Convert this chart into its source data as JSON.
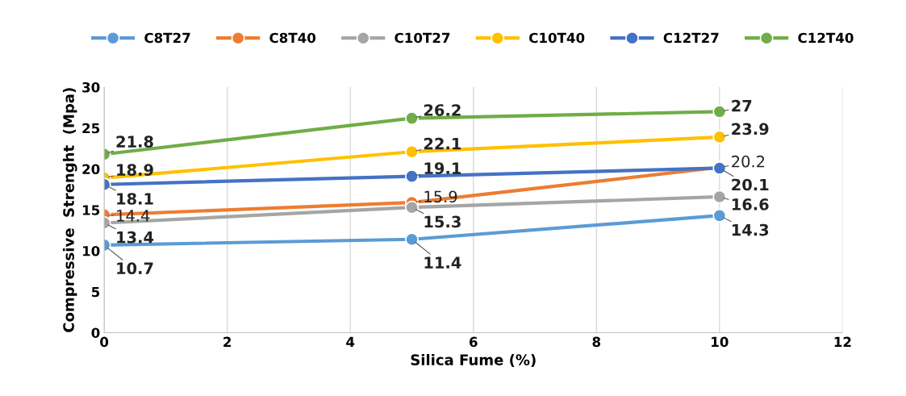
{
  "chart_data": {
    "type": "line",
    "xlabel": "Silica Fume (%)",
    "ylabel": "Compressive  Strenght  (Mpa)",
    "x": [
      0,
      5,
      10
    ],
    "xlim": [
      0,
      12
    ],
    "xticks": [
      0,
      2,
      4,
      6,
      8,
      10,
      12
    ],
    "ylim": [
      0,
      30
    ],
    "yticks": [
      0,
      5,
      10,
      15,
      20,
      25,
      30
    ],
    "grid": "x",
    "legend": "top",
    "marker": "circle",
    "line_style": "solid",
    "data_labels": true,
    "series": [
      {
        "name": "C8T27",
        "color": "#5b9bd5",
        "values": [
          10.7,
          11.4,
          14.3
        ]
      },
      {
        "name": "C8T40",
        "color": "#ed7d31",
        "values": [
          14.4,
          15.9,
          20.2
        ]
      },
      {
        "name": "C10T27",
        "color": "#a5a5a5",
        "values": [
          13.4,
          15.3,
          16.6
        ]
      },
      {
        "name": "C10T40",
        "color": "#ffc000",
        "values": [
          18.9,
          22.1,
          23.9
        ]
      },
      {
        "name": "C12T27",
        "color": "#4472c4",
        "values": [
          18.1,
          19.1,
          20.1
        ]
      },
      {
        "name": "C12T40",
        "color": "#70ad47",
        "values": [
          21.8,
          26.2,
          27
        ]
      }
    ]
  }
}
